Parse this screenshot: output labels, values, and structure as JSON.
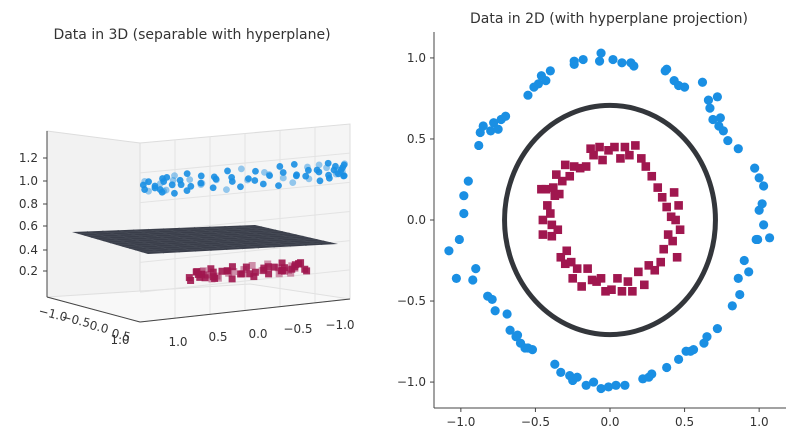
{
  "colors": {
    "outer": "#1a8fe3",
    "inner": "#a0174f",
    "circle": "#33363b",
    "axis": "#444444",
    "plane": "#2f3440"
  },
  "chart_data": [
    {
      "type": "scatter",
      "projection": "3d",
      "title": "Data in 3D (separable with hyperplane)",
      "xlim": [
        -1.1,
        1.1
      ],
      "ylim": [
        -1.1,
        1.1
      ],
      "zlim": [
        0.05,
        1.3
      ],
      "x_ticks": [
        "−1.0",
        "−0.5",
        "0.0",
        "0.5",
        "1.0"
      ],
      "y_ticks": [
        "1.0",
        "0.5",
        "0.0",
        "−0.5",
        "−1.0"
      ],
      "z_ticks": [
        "0.2",
        "0.4",
        "0.6",
        "0.8",
        "1.0",
        "1.2"
      ],
      "hyperplane_z": 0.5,
      "series": [
        {
          "group": "outer",
          "marker": "circle",
          "z": 1.0,
          "radius": 1.0,
          "count": 80
        },
        {
          "group": "inner",
          "marker": "square",
          "z": 0.12,
          "radius": 0.5,
          "count": 60
        }
      ]
    },
    {
      "type": "scatter",
      "title": "Data in 2D (with hyperplane projection)",
      "xlim": [
        -1.18,
        1.18
      ],
      "ylim": [
        -1.16,
        1.16
      ],
      "x_ticks": [
        -1.0,
        -0.5,
        0.0,
        0.5,
        1.0
      ],
      "y_ticks": [
        -1.0,
        -0.5,
        0.0,
        0.5,
        1.0
      ],
      "x_tick_labels": [
        "−1.0",
        "−0.5",
        "0.0",
        "0.5",
        "1.0"
      ],
      "y_tick_labels": [
        "−1.0",
        "−0.5",
        "0.0",
        "0.5",
        "1.0"
      ],
      "decision_circle_radius": 0.707,
      "series": [
        {
          "group": "outer",
          "marker": "circle",
          "points": [
            [
              -1.08,
              -0.19
            ],
            [
              -1.03,
              -0.36
            ],
            [
              -1.01,
              -0.12
            ],
            [
              -0.98,
              0.04
            ],
            [
              -0.98,
              0.15
            ],
            [
              -0.95,
              0.24
            ],
            [
              -0.92,
              -0.37
            ],
            [
              -0.9,
              -0.3
            ],
            [
              -0.88,
              0.46
            ],
            [
              -0.87,
              0.54
            ],
            [
              -0.85,
              0.58
            ],
            [
              -0.82,
              -0.47
            ],
            [
              -0.79,
              -0.49
            ],
            [
              -0.8,
              0.55
            ],
            [
              -0.78,
              0.6
            ],
            [
              -0.75,
              0.56
            ],
            [
              -0.77,
              -0.56
            ],
            [
              -0.73,
              0.62
            ],
            [
              -0.7,
              0.64
            ],
            [
              -0.69,
              -0.58
            ],
            [
              -0.67,
              -0.68
            ],
            [
              -0.63,
              -0.72
            ],
            [
              -0.62,
              -0.71
            ],
            [
              -0.6,
              -0.76
            ],
            [
              -0.57,
              -0.79
            ],
            [
              -0.55,
              -0.79
            ],
            [
              -0.52,
              -0.8
            ],
            [
              -0.55,
              0.77
            ],
            [
              -0.51,
              0.82
            ],
            [
              -0.48,
              0.84
            ],
            [
              -0.46,
              0.89
            ],
            [
              -0.43,
              0.86
            ],
            [
              -0.4,
              0.92
            ],
            [
              -0.37,
              -0.89
            ],
            [
              -0.33,
              -0.94
            ],
            [
              -0.27,
              -0.96
            ],
            [
              -0.25,
              -0.99
            ],
            [
              -0.24,
              0.98
            ],
            [
              -0.24,
              0.96
            ],
            [
              -0.22,
              -0.97
            ],
            [
              -0.18,
              0.99
            ],
            [
              -0.16,
              -1.02
            ],
            [
              -0.11,
              -1.0
            ],
            [
              -0.07,
              0.98
            ],
            [
              -0.06,
              1.03
            ],
            [
              -0.06,
              -1.04
            ],
            [
              -0.01,
              -1.03
            ],
            [
              0.02,
              0.99
            ],
            [
              0.04,
              -1.02
            ],
            [
              0.08,
              0.97
            ],
            [
              0.1,
              -1.02
            ],
            [
              0.14,
              0.97
            ],
            [
              0.16,
              0.95
            ],
            [
              0.22,
              -0.98
            ],
            [
              0.26,
              -0.97
            ],
            [
              0.28,
              -0.95
            ],
            [
              0.37,
              0.92
            ],
            [
              0.38,
              0.93
            ],
            [
              0.38,
              -0.91
            ],
            [
              0.43,
              0.86
            ],
            [
              0.46,
              0.83
            ],
            [
              0.46,
              -0.86
            ],
            [
              0.5,
              0.82
            ],
            [
              0.51,
              -0.81
            ],
            [
              0.54,
              -0.81
            ],
            [
              0.56,
              -0.8
            ],
            [
              0.62,
              0.85
            ],
            [
              0.63,
              -0.76
            ],
            [
              0.65,
              -0.72
            ],
            [
              0.67,
              0.69
            ],
            [
              0.66,
              0.74
            ],
            [
              0.69,
              0.62
            ],
            [
              0.72,
              0.76
            ],
            [
              0.72,
              -0.67
            ],
            [
              0.74,
              0.63
            ],
            [
              0.73,
              0.58
            ],
            [
              0.76,
              0.55
            ],
            [
              0.79,
              0.49
            ],
            [
              0.82,
              -0.53
            ],
            [
              0.86,
              0.44
            ],
            [
              0.87,
              -0.46
            ],
            [
              0.86,
              -0.36
            ],
            [
              0.9,
              -0.25
            ],
            [
              0.93,
              -0.32
            ],
            [
              0.97,
              0.32
            ],
            [
              0.98,
              -0.12
            ],
            [
              0.99,
              -0.12
            ],
            [
              1.0,
              0.26
            ],
            [
              1.0,
              0.06
            ],
            [
              1.02,
              0.1
            ],
            [
              1.03,
              -0.03
            ],
            [
              1.03,
              0.21
            ],
            [
              1.07,
              -0.11
            ]
          ]
        },
        {
          "group": "inner",
          "marker": "square",
          "points": [
            [
              -0.46,
              0.19
            ],
            [
              -0.45,
              0.0
            ],
            [
              -0.45,
              -0.09
            ],
            [
              -0.43,
              0.19
            ],
            [
              -0.42,
              0.09
            ],
            [
              -0.4,
              0.04
            ],
            [
              -0.39,
              -0.03
            ],
            [
              -0.39,
              -0.1
            ],
            [
              -0.38,
              0.2
            ],
            [
              -0.37,
              0.15
            ],
            [
              -0.36,
              0.28
            ],
            [
              -0.35,
              -0.06
            ],
            [
              -0.34,
              0.16
            ],
            [
              -0.33,
              -0.23
            ],
            [
              -0.32,
              0.24
            ],
            [
              -0.3,
              0.34
            ],
            [
              -0.3,
              -0.27
            ],
            [
              -0.29,
              -0.19
            ],
            [
              -0.27,
              0.27
            ],
            [
              -0.26,
              -0.26
            ],
            [
              -0.25,
              -0.36
            ],
            [
              -0.24,
              0.33
            ],
            [
              -0.22,
              -0.3
            ],
            [
              -0.2,
              0.32
            ],
            [
              -0.19,
              -0.41
            ],
            [
              -0.16,
              0.33
            ],
            [
              -0.15,
              -0.3
            ],
            [
              -0.13,
              0.44
            ],
            [
              -0.12,
              -0.37
            ],
            [
              -0.11,
              0.4
            ],
            [
              -0.09,
              -0.38
            ],
            [
              -0.07,
              0.45
            ],
            [
              -0.06,
              -0.36
            ],
            [
              -0.05,
              0.37
            ],
            [
              -0.03,
              -0.44
            ],
            [
              -0.01,
              0.43
            ],
            [
              0.01,
              -0.43
            ],
            [
              0.03,
              0.45
            ],
            [
              0.05,
              -0.36
            ],
            [
              0.07,
              0.38
            ],
            [
              0.08,
              -0.44
            ],
            [
              0.1,
              0.45
            ],
            [
              0.12,
              -0.38
            ],
            [
              0.13,
              0.4
            ],
            [
              0.15,
              -0.44
            ],
            [
              0.17,
              0.46
            ],
            [
              0.19,
              -0.32
            ],
            [
              0.21,
              0.38
            ],
            [
              0.23,
              -0.4
            ],
            [
              0.24,
              0.33
            ],
            [
              0.26,
              -0.28
            ],
            [
              0.28,
              0.27
            ],
            [
              0.3,
              -0.31
            ],
            [
              0.32,
              0.2
            ],
            [
              0.34,
              -0.26
            ],
            [
              0.35,
              0.14
            ],
            [
              0.36,
              -0.18
            ],
            [
              0.38,
              0.08
            ],
            [
              0.39,
              -0.09
            ],
            [
              0.41,
              0.02
            ],
            [
              0.42,
              -0.13
            ],
            [
              0.43,
              0.17
            ],
            [
              0.44,
              0.0
            ],
            [
              0.45,
              -0.23
            ],
            [
              0.46,
              0.09
            ],
            [
              0.47,
              -0.06
            ]
          ]
        }
      ]
    }
  ]
}
